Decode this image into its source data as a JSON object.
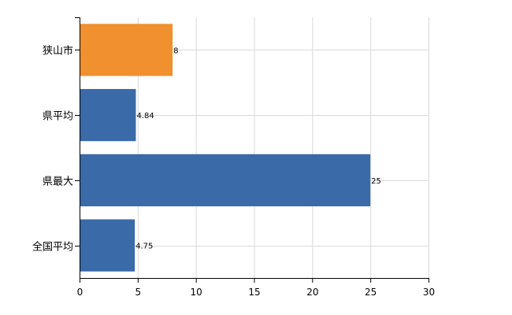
{
  "chart_data": {
    "type": "bar",
    "orientation": "horizontal",
    "title": "",
    "xlabel": "",
    "ylabel": "",
    "categories": [
      "狭山市",
      "県平均",
      "県最大",
      "全国平均"
    ],
    "values": [
      8,
      4.84,
      25,
      4.75
    ],
    "value_labels": [
      "8",
      "4.84",
      "25",
      "4.75"
    ],
    "xlim": [
      0,
      30
    ],
    "xticks": [
      0,
      5,
      10,
      15,
      20,
      25,
      30
    ],
    "grid": true,
    "legend": "none",
    "colors": {
      "highlight": "#f0902f",
      "default": "#3a6aa8",
      "grid": "#d9d9d9",
      "axis": "#000000"
    },
    "highlight_index": 0
  }
}
